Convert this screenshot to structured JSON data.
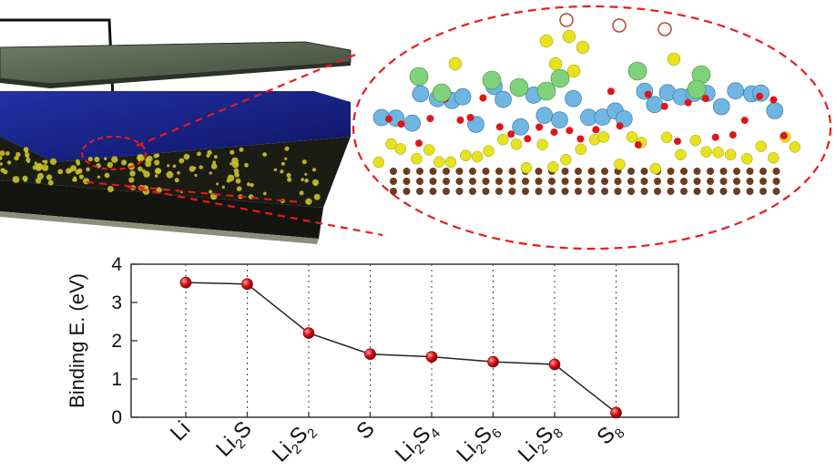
{
  "colors": {
    "point": "#e8141a",
    "line": "#222222",
    "dash": "#e81b1b",
    "substrate_top": "#1a2486",
    "cover_sheet": "#5b6a52"
  },
  "chart_data": {
    "type": "line",
    "title": "",
    "xlabel": "",
    "ylabel": "Binding E. (eV)",
    "ylim": [
      0,
      4
    ],
    "yticks": [
      "0",
      "1",
      "2",
      "3",
      "4"
    ],
    "grid": "vertical-dotted",
    "categories": [
      {
        "base": "Li",
        "sub": "",
        "mid": "",
        "sub2": ""
      },
      {
        "base": "Li",
        "sub": "2",
        "mid": "S",
        "sub2": ""
      },
      {
        "base": "Li",
        "sub": "2",
        "mid": "S",
        "sub2": "2"
      },
      {
        "base": "S",
        "sub": "",
        "mid": "",
        "sub2": ""
      },
      {
        "base": "Li",
        "sub": "2",
        "mid": "S",
        "sub2": "4"
      },
      {
        "base": "Li",
        "sub": "2",
        "mid": "S",
        "sub2": "6"
      },
      {
        "base": "Li",
        "sub": "2",
        "mid": "S",
        "sub2": "8"
      },
      {
        "base": "S",
        "sub": "8",
        "mid": "",
        "sub2": ""
      }
    ],
    "values": [
      3.52,
      3.48,
      2.2,
      1.65,
      1.58,
      1.45,
      1.38,
      0.12
    ]
  }
}
